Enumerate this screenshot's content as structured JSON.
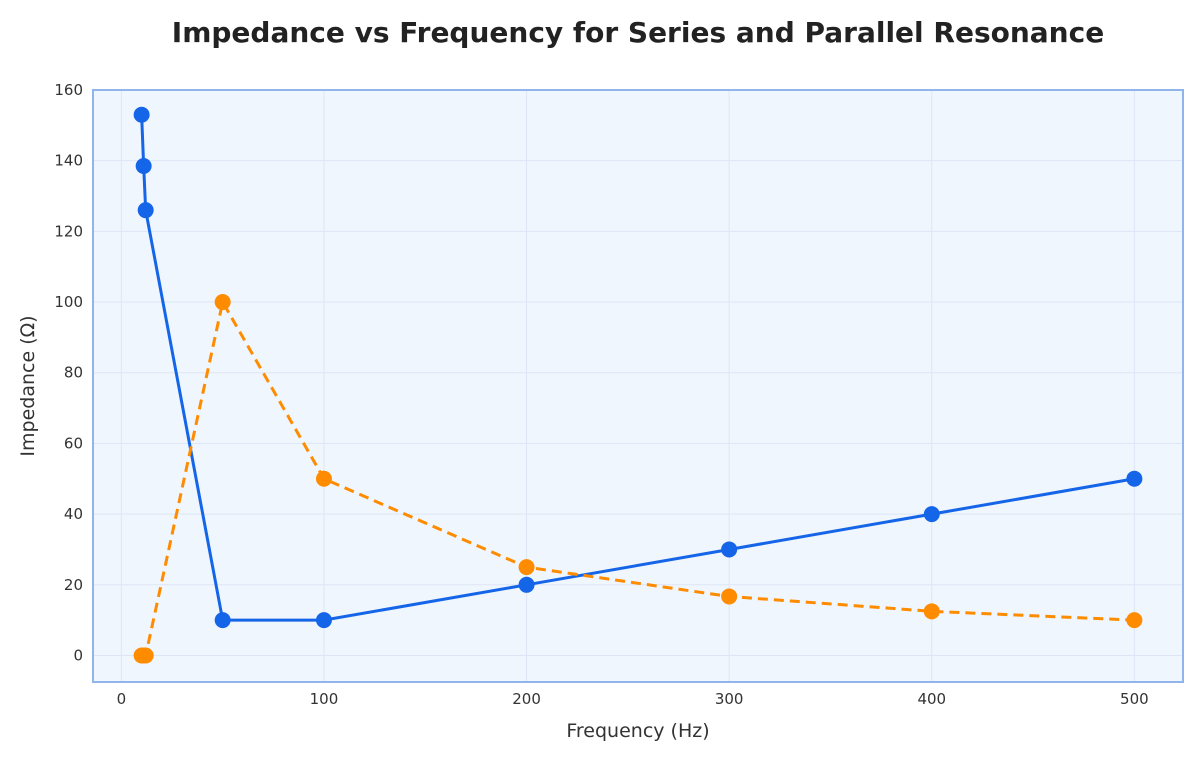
{
  "chart_data": {
    "type": "line",
    "title": "Impedance vs Frequency for Series and Parallel Resonance",
    "xlabel": "Frequency (Hz)",
    "ylabel": "Impedance (Ω)",
    "xlim": [
      -14,
      524
    ],
    "ylim": [
      -7.5,
      160
    ],
    "xticks": [
      0,
      100,
      200,
      300,
      400,
      500
    ],
    "yticks": [
      0,
      20,
      40,
      60,
      80,
      100,
      120,
      140,
      160
    ],
    "grid": true,
    "series": [
      {
        "color": "#1565e8",
        "style": "solid",
        "marker": "circle",
        "x": [
          10,
          11,
          12,
          50,
          100,
          200,
          300,
          400,
          500
        ],
        "y": [
          153,
          138.5,
          126,
          10,
          10,
          20,
          30,
          40,
          50
        ]
      },
      {
        "color": "#ff8c00",
        "style": "dashed",
        "marker": "circle",
        "x": [
          10,
          11,
          12,
          50,
          100,
          200,
          300,
          400,
          500
        ],
        "y": [
          0,
          0,
          0,
          100,
          50,
          25,
          16.7,
          12.5,
          10
        ]
      }
    ],
    "colors": {
      "plot_bg": "#f0f6fd",
      "plot_border": "#8fb5ec",
      "grid": "#dde6f5"
    }
  }
}
